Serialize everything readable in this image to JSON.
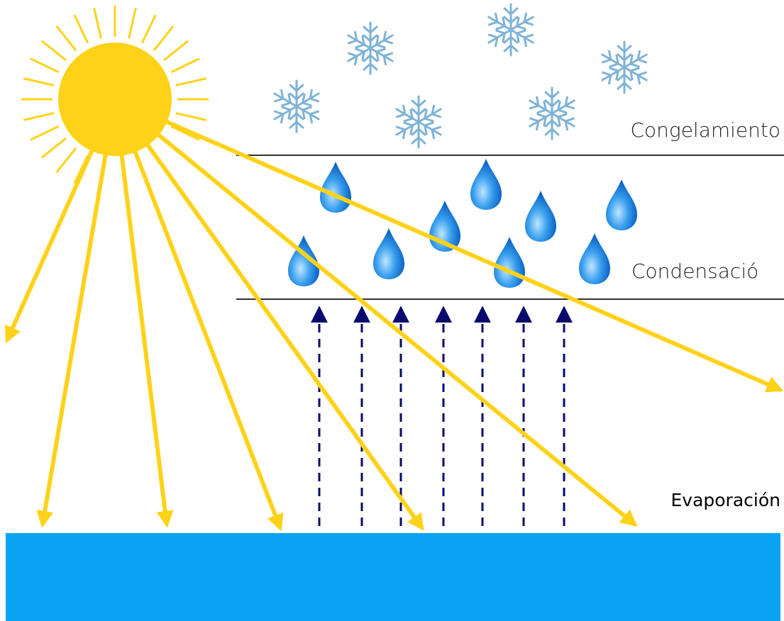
{
  "labels": {
    "freezing": "Congelamiento",
    "condensation": "Condensació",
    "evaporation": "Evaporación"
  }
}
